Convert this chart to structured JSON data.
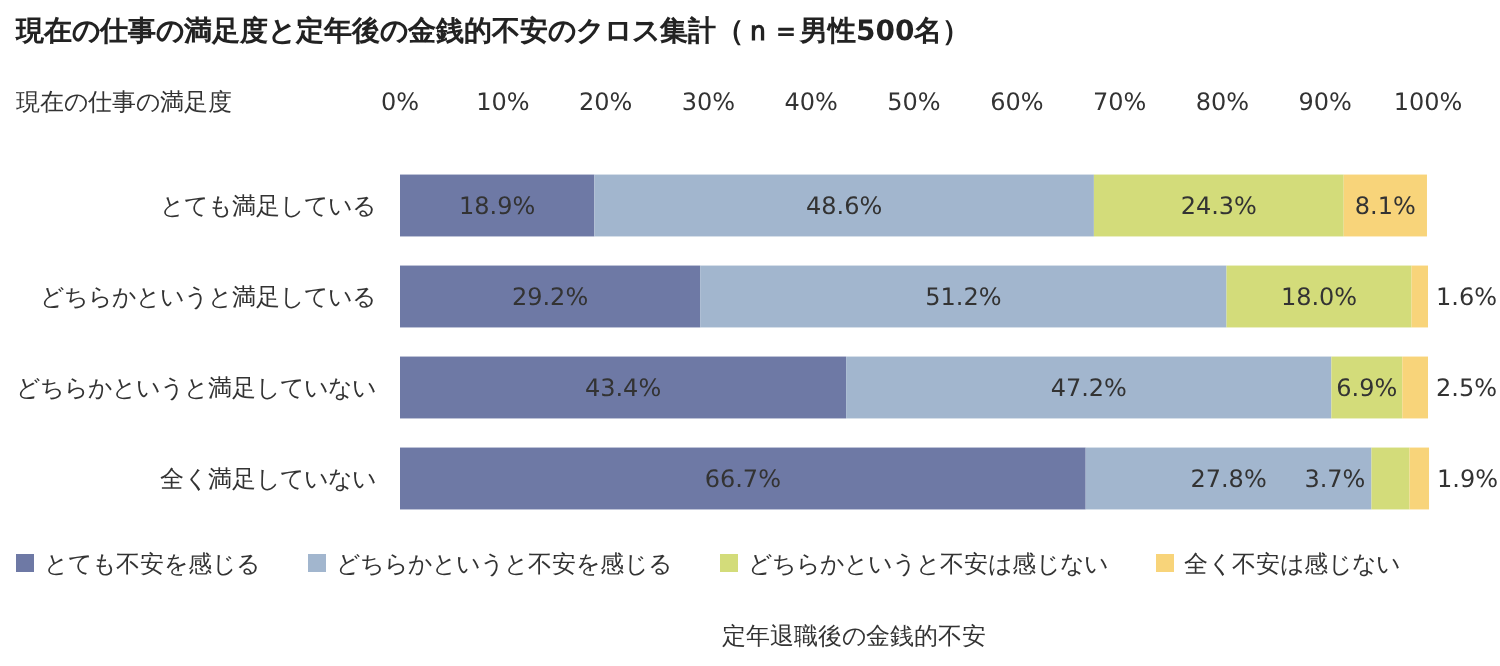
{
  "chart_data": {
    "type": "bar",
    "orientation": "horizontal",
    "stacked": true,
    "title": "現在の仕事の満足度と定年後の金銭的不安のクロス集計（ｎ＝男性500名）",
    "ylabel": "現在の仕事の満足度",
    "xlabel": "定年退職後の金銭的不安",
    "categories": [
      "とても満足している",
      "どちらかというと満足している",
      "どちらかというと満足していない",
      "全く満足していない"
    ],
    "series": [
      {
        "name": "とても不安を感じる",
        "color": "#6e79a5",
        "values": [
          18.9,
          29.2,
          43.4,
          66.7
        ],
        "value_labels": [
          "18.9%",
          "29.2%",
          "43.4%",
          "66.7%"
        ]
      },
      {
        "name": "どちらかというと不安を感じる",
        "color": "#a2b6ce",
        "values": [
          48.6,
          51.2,
          47.2,
          27.8
        ],
        "value_labels": [
          "48.6%",
          "51.2%",
          "47.2%",
          "27.8%"
        ]
      },
      {
        "name": "どちらかというと不安は感じない",
        "color": "#d3dc7a",
        "values": [
          24.3,
          18.0,
          6.9,
          3.7
        ],
        "value_labels": [
          "24.3%",
          "18.0%",
          "6.9%",
          "3.7%"
        ]
      },
      {
        "name": "全く不安は感じない",
        "color": "#f8d47a",
        "values": [
          8.1,
          1.6,
          2.5,
          1.9
        ],
        "value_labels": [
          "8.1%",
          "1.6%",
          "2.5%",
          "1.9%"
        ]
      }
    ],
    "xlim": [
      0,
      100
    ],
    "xticks": [
      {
        "value": 0,
        "label": "0%"
      },
      {
        "value": 10,
        "label": "10%"
      },
      {
        "value": 20,
        "label": "20%"
      },
      {
        "value": 30,
        "label": "30%"
      },
      {
        "value": 40,
        "label": "40%"
      },
      {
        "value": 50,
        "label": "50%"
      },
      {
        "value": 60,
        "label": "60%"
      },
      {
        "value": 70,
        "label": "70%"
      },
      {
        "value": 80,
        "label": "80%"
      },
      {
        "value": 90,
        "label": "90%"
      },
      {
        "value": 100,
        "label": "100%"
      }
    ],
    "legend": "bottom"
  }
}
